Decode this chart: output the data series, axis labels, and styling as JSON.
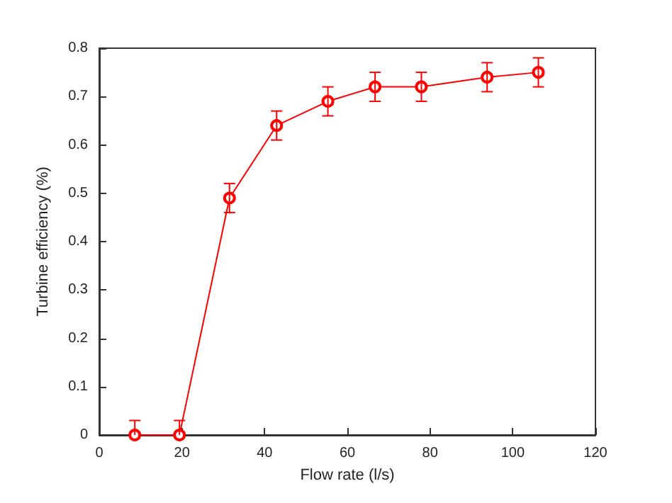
{
  "chart_data": {
    "type": "line",
    "xlabel": "Flow rate (l/s)",
    "ylabel": "Turbine efficiency (%)",
    "x": [
      8.6,
      19.4,
      31.5,
      42.9,
      55.3,
      66.7,
      77.9,
      93.8,
      106.2
    ],
    "series": [
      {
        "color": "#ff0000",
        "values": [
          0,
          0,
          0.49,
          0.64,
          0.69,
          0.72,
          0.72,
          0.74,
          0.75
        ],
        "errors": [
          0.03,
          0.03,
          0.03,
          0.03,
          0.03,
          0.03,
          0.03,
          0.03,
          0.03
        ]
      }
    ],
    "xlim": [
      0,
      120
    ],
    "xticks": [
      0,
      20,
      40,
      60,
      80,
      100,
      120
    ],
    "ylim": [
      0,
      0.8
    ],
    "yticks": [
      0,
      0.1,
      0.2,
      0.3,
      0.4,
      0.5,
      0.6,
      0.7,
      0.8
    ],
    "grid": false,
    "marker": "circle",
    "line_style": "solid",
    "legend": false
  }
}
